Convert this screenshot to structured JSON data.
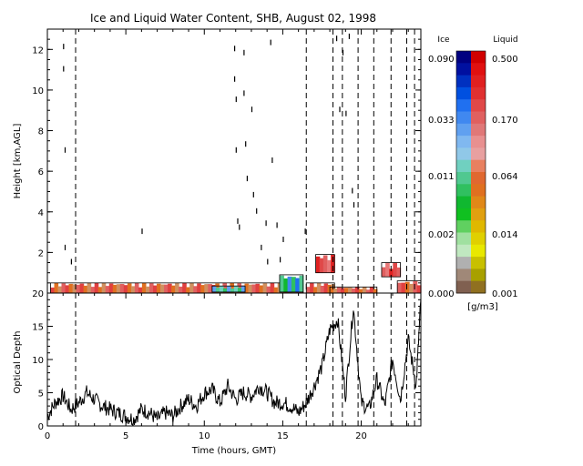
{
  "chart_data": [
    {
      "type": "heatmap",
      "title": "Ice and Liquid Water Content, SHB, August 02, 1998",
      "xlabel": "",
      "ylabel": "Height [km,AGL]",
      "xlim": [
        0,
        23.8
      ],
      "ylim": [
        0,
        13
      ],
      "xticks": [
        "0",
        "5",
        "10",
        "15",
        "20"
      ],
      "yticks": [
        "2",
        "4",
        "6",
        "8",
        "10",
        "12"
      ],
      "dashed_x": [
        1.8,
        16.5,
        18.2,
        18.8,
        19.8,
        20.8,
        21.9,
        22.9,
        23.4
      ],
      "colorbar": {
        "ice_label": "Ice",
        "liquid_label": "Liquid",
        "unit_label": "[g/m3]",
        "ice_ticks": [
          "0.090",
          "0.033",
          "0.011",
          "0.002",
          "0.000"
        ],
        "liquid_ticks": [
          "0.500",
          "0.170",
          "0.064",
          "0.014",
          "0.001"
        ],
        "ice_colors": [
          "#000080",
          "#0010a0",
          "#0030c0",
          "#0050e0",
          "#2070f0",
          "#4088f0",
          "#60a0f0",
          "#80b8f0",
          "#90c8e8",
          "#70d0c0",
          "#50c890",
          "#30c060",
          "#10b830",
          "#10c020",
          "#60d060",
          "#a0e0a0",
          "#c0e8c0",
          "#b0b0b0",
          "#a08878",
          "#806050"
        ],
        "liquid_colors": [
          "#d00000",
          "#e01010",
          "#e02020",
          "#e03030",
          "#e04848",
          "#e06060",
          "#e07878",
          "#e89090",
          "#e8a0a0",
          "#e88060",
          "#e06830",
          "#e07020",
          "#e08818",
          "#e0a010",
          "#e0b800",
          "#e0d000",
          "#e8e800",
          "#c8c000",
          "#a8a000",
          "#907020"
        ]
      },
      "cloud_layers": [
        {
          "x0": 0.2,
          "x1": 16.3,
          "y0": 0.0,
          "y1": 0.5,
          "kind": "low"
        },
        {
          "x0": 10.5,
          "x1": 12.6,
          "y0": 0.05,
          "y1": 0.35,
          "kind": "ice-low"
        },
        {
          "x0": 14.8,
          "x1": 16.3,
          "y0": 0.05,
          "y1": 0.9,
          "kind": "mixed"
        },
        {
          "x0": 16.5,
          "x1": 18.3,
          "y0": 0.0,
          "y1": 0.5,
          "kind": "low"
        },
        {
          "x0": 17.1,
          "x1": 18.3,
          "y0": 1.0,
          "y1": 1.9,
          "kind": "liquid"
        },
        {
          "x0": 18.0,
          "x1": 21.0,
          "y0": 0.0,
          "y1": 0.3,
          "kind": "low"
        },
        {
          "x0": 21.3,
          "x1": 22.5,
          "y0": 0.8,
          "y1": 1.5,
          "kind": "liquid"
        },
        {
          "x0": 22.3,
          "x1": 23.8,
          "y0": 0.0,
          "y1": 0.6,
          "kind": "low"
        }
      ]
    },
    {
      "type": "line",
      "title": "",
      "xlabel": "Time (hours, GMT)",
      "ylabel": "Optical Depth",
      "xlim": [
        0,
        23.8
      ],
      "ylim": [
        0,
        20
      ],
      "xticks": [
        "0",
        "5",
        "10",
        "15",
        "20"
      ],
      "yticks": [
        "0",
        "5",
        "10",
        "15",
        "20"
      ],
      "dashed_x": [
        1.8,
        16.5,
        18.2,
        18.8,
        19.8,
        20.8,
        21.9,
        22.9,
        23.4
      ],
      "series": [
        {
          "x": [
            0,
            0.5,
            1,
            1.5,
            2,
            2.5,
            3,
            3.5,
            4,
            4.5,
            5,
            5.5,
            6,
            6.5,
            7,
            7.5,
            8,
            8.5,
            9,
            9.5,
            10,
            10.5,
            11,
            11.5,
            12,
            12.5,
            13,
            13.5,
            14,
            14.5,
            15,
            15.5,
            16,
            16.5,
            17,
            17.5,
            18,
            18.5,
            19,
            19.5,
            20,
            20.5,
            21,
            21.5,
            22,
            22.5,
            23,
            23.5,
            23.8
          ],
          "y": [
            1.5,
            3.5,
            4.5,
            2.5,
            3.5,
            5,
            4,
            3,
            2.5,
            2,
            1.5,
            1,
            2.5,
            2,
            1,
            2,
            1.5,
            3,
            4,
            3,
            5,
            5.5,
            3.5,
            6,
            4,
            5,
            4.5,
            6,
            5,
            3.5,
            3.5,
            3,
            2,
            3.5,
            6,
            9,
            14.5,
            16,
            4.5,
            18,
            3.5,
            2.5,
            7,
            3,
            10,
            4,
            13,
            6,
            19
          ]
        }
      ]
    }
  ]
}
